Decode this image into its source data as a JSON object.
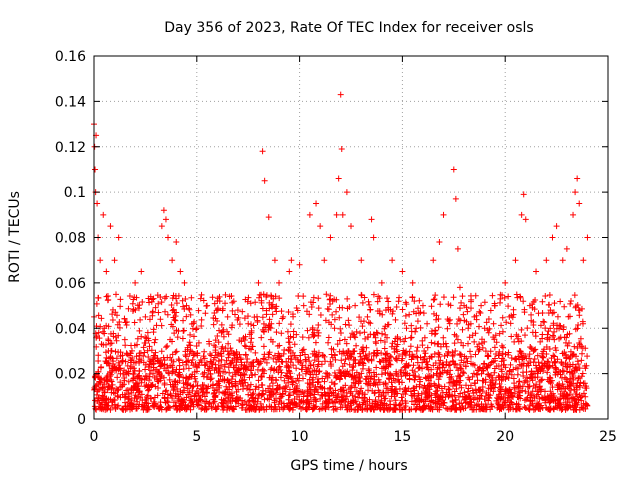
{
  "chart_data": {
    "type": "scatter",
    "title": "Day 356 of 2023, Rate Of TEC Index for receiver osls",
    "xlabel": "GPS time / hours",
    "ylabel": "ROTI / TECUs",
    "xlim": [
      0,
      25
    ],
    "ylim": [
      0,
      0.16
    ],
    "x_ticks": [
      0,
      5,
      10,
      15,
      20,
      25
    ],
    "x_tick_labels": [
      "0",
      "5",
      "10",
      "15",
      "20",
      "25"
    ],
    "y_ticks": [
      0,
      0.02,
      0.04,
      0.06,
      0.08,
      0.1,
      0.12,
      0.14,
      0.16
    ],
    "y_tick_labels": [
      "0",
      "0.02",
      "0.04",
      "0.06",
      "0.08",
      "0.1",
      "0.12",
      "0.14",
      "0.16"
    ],
    "grid": true,
    "marker": "+",
    "color": "#ff0000",
    "series": [
      {
        "name": "ROTI",
        "x": [
          0.0,
          0.03,
          0.05,
          0.08,
          0.1,
          0.15,
          0.2,
          0.3,
          0.45,
          0.6,
          0.8,
          1.0,
          1.2,
          2.0,
          2.3,
          3.3,
          3.4,
          3.5,
          3.6,
          3.8,
          4.0,
          4.2,
          4.4,
          5.5,
          6.0,
          6.5,
          7.0,
          8.0,
          8.2,
          8.3,
          8.5,
          8.8,
          9.0,
          9.5,
          9.6,
          10.0,
          10.5,
          10.8,
          11.0,
          11.2,
          11.5,
          11.8,
          11.9,
          12.0,
          12.05,
          12.1,
          12.3,
          12.5,
          13.0,
          13.5,
          13.6,
          14.0,
          14.5,
          15.0,
          15.5,
          16.0,
          16.5,
          16.8,
          17.0,
          17.5,
          17.6,
          17.7,
          17.8,
          18.0,
          18.5,
          19.0,
          19.5,
          20.0,
          20.5,
          20.8,
          20.9,
          21.0,
          21.5,
          22.0,
          22.3,
          22.5,
          22.8,
          23.0,
          23.3,
          23.4,
          23.5,
          23.6,
          23.8,
          24.0,
          0.5,
          1.5,
          2.5,
          4.5,
          5.0,
          6.2,
          7.5,
          9.2,
          10.2,
          11.3,
          12.7,
          13.3,
          14.2,
          15.2,
          16.2,
          17.2,
          18.2,
          19.2,
          20.2,
          21.2,
          22.2,
          23.2,
          0.7,
          1.7,
          2.7,
          3.7,
          4.7,
          5.7,
          6.7,
          7.7,
          8.7,
          9.7,
          10.7,
          11.7,
          12.7,
          13.7,
          14.7,
          15.7,
          16.7,
          17.7,
          18.7,
          19.7,
          20.7,
          21.7,
          22.7,
          23.7
        ],
        "y": [
          0.13,
          0.12,
          0.11,
          0.1,
          0.125,
          0.095,
          0.08,
          0.07,
          0.09,
          0.065,
          0.085,
          0.07,
          0.08,
          0.06,
          0.065,
          0.085,
          0.092,
          0.088,
          0.08,
          0.07,
          0.078,
          0.065,
          0.06,
          0.05,
          0.052,
          0.045,
          0.048,
          0.06,
          0.118,
          0.105,
          0.089,
          0.07,
          0.06,
          0.065,
          0.07,
          0.068,
          0.09,
          0.095,
          0.085,
          0.07,
          0.08,
          0.09,
          0.106,
          0.143,
          0.119,
          0.09,
          0.1,
          0.085,
          0.07,
          0.088,
          0.08,
          0.06,
          0.07,
          0.065,
          0.06,
          0.05,
          0.07,
          0.078,
          0.09,
          0.11,
          0.097,
          0.075,
          0.058,
          0.05,
          0.045,
          0.04,
          0.05,
          0.06,
          0.07,
          0.09,
          0.099,
          0.088,
          0.065,
          0.07,
          0.08,
          0.085,
          0.07,
          0.075,
          0.09,
          0.1,
          0.106,
          0.095,
          0.07,
          0.08,
          0.04,
          0.035,
          0.045,
          0.05,
          0.04,
          0.038,
          0.042,
          0.045,
          0.05,
          0.055,
          0.05,
          0.045,
          0.048,
          0.04,
          0.042,
          0.044,
          0.04,
          0.038,
          0.045,
          0.05,
          0.048,
          0.052,
          0.03,
          0.028,
          0.032,
          0.035,
          0.03,
          0.028,
          0.03,
          0.032,
          0.034,
          0.036,
          0.038,
          0.04,
          0.036,
          0.034,
          0.032,
          0.03,
          0.033,
          0.035,
          0.03,
          0.028,
          0.03,
          0.034,
          0.036,
          0.032
        ],
        "dense_band": {
          "ymin": 0.004,
          "ymax": 0.03,
          "typical": 0.015,
          "x_start": 0,
          "x_end": 24
        }
      }
    ]
  }
}
